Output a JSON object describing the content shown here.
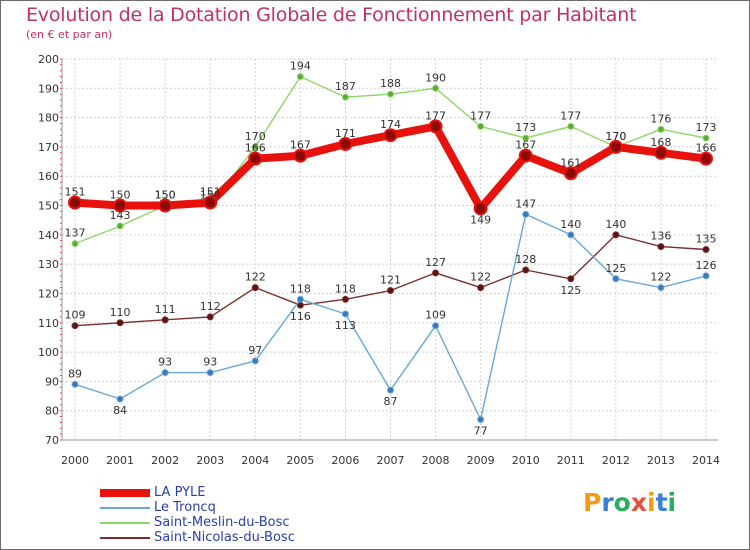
{
  "title": "Evolution de la Dotation Globale de Fonctionnement par Habitant",
  "subtitle": "(en € et par an)",
  "brand": {
    "letters": [
      "P",
      "r",
      "o",
      "x",
      "i",
      "t",
      "i"
    ],
    "colors": [
      "#f39c12",
      "#3a7fd5",
      "#27ae60",
      "#e74c3c",
      "#f39c12",
      "#3a7fd5",
      "#27ae60"
    ]
  },
  "chart_data": {
    "type": "line",
    "x": [
      "2000",
      "2001",
      "2002",
      "2003",
      "2004",
      "2005",
      "2006",
      "2007",
      "2008",
      "2009",
      "2010",
      "2011",
      "2012",
      "2013",
      "2014"
    ],
    "ylim": [
      70,
      200
    ],
    "yticks": [
      "70",
      "80",
      "90",
      "100",
      "110",
      "120",
      "130",
      "140",
      "150",
      "160",
      "170",
      "180",
      "190",
      "200"
    ],
    "grid": true,
    "series": [
      {
        "name": "LA PYLE",
        "color": "#e8120c",
        "values": [
          151,
          150,
          150,
          151,
          166,
          167,
          171,
          174,
          177,
          149,
          167,
          161,
          170,
          168,
          166
        ],
        "labels": [
          "151",
          "150",
          "150",
          "151",
          "166",
          "167",
          "171",
          "174",
          "177",
          "149",
          "167",
          "161",
          "170",
          "168",
          "166"
        ]
      },
      {
        "name": "Le Troncq",
        "color": "#6aa7d8",
        "values": [
          89,
          84,
          93,
          93,
          97,
          118,
          113,
          87,
          109,
          77,
          147,
          140,
          125,
          122,
          126
        ],
        "labels": [
          "89",
          "84",
          "93",
          "93",
          "97",
          "118",
          "113",
          "87",
          "109",
          "77",
          "147",
          "140",
          "125",
          "122",
          "126"
        ]
      },
      {
        "name": "Saint-Meslin-du-Bosc",
        "color": "#8fd66a",
        "values": [
          137,
          143,
          150,
          150,
          170,
          194,
          187,
          188,
          190,
          177,
          173,
          177,
          170,
          176,
          173
        ],
        "labels": [
          "137",
          "143",
          "150",
          "150",
          "170",
          "194",
          "187",
          "188",
          "190",
          "177",
          "173",
          "177",
          "170",
          "176",
          "173"
        ]
      },
      {
        "name": "Saint-Nicolas-du-Bosc",
        "color": "#7a2e2e",
        "values": [
          109,
          110,
          111,
          112,
          122,
          116,
          118,
          121,
          127,
          122,
          128,
          125,
          140,
          136,
          135
        ],
        "labels": [
          "109",
          "110",
          "111",
          "112",
          "122",
          "116",
          "118",
          "121",
          "127",
          "122",
          "128",
          "125",
          "140",
          "136",
          "135"
        ]
      }
    ]
  }
}
